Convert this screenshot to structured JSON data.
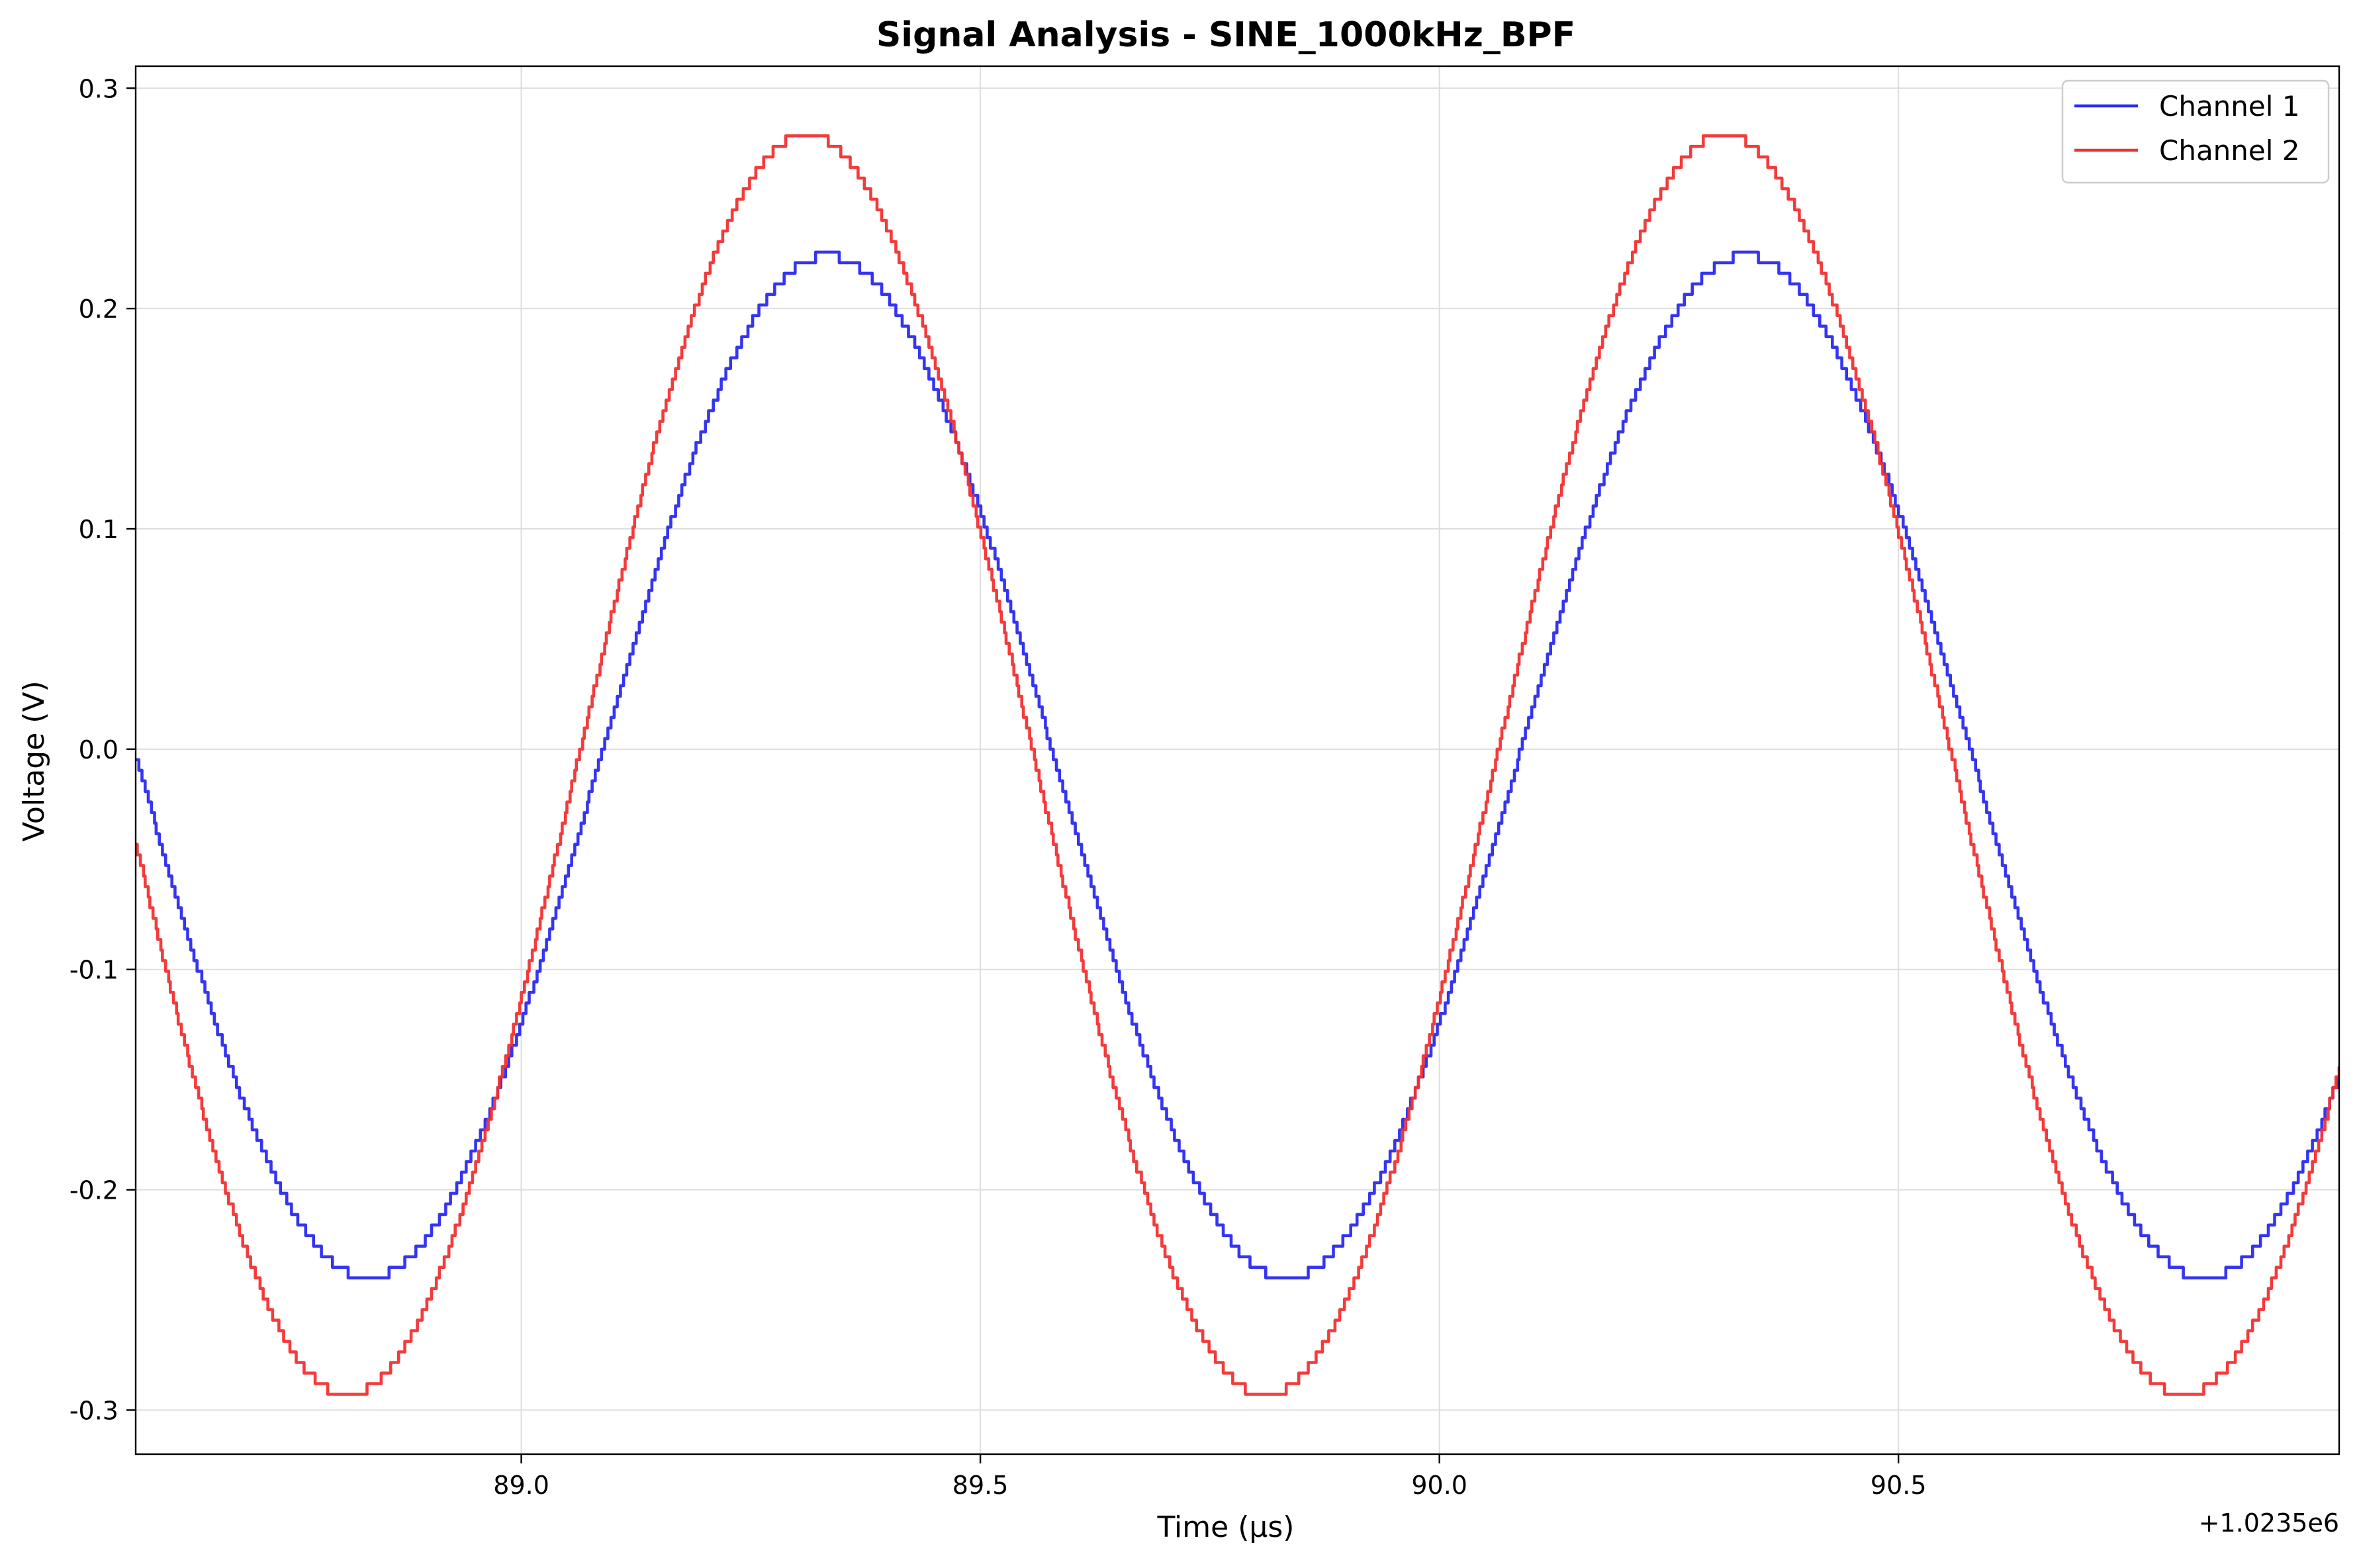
{
  "chart_data": {
    "type": "line",
    "title": "Signal Analysis - SINE_1000kHz_BPF",
    "xlabel": "Time (µs)",
    "ylabel": "Voltage (V)",
    "x_offset_label": "+1.0235e6",
    "xlim": [
      88.58,
      90.98
    ],
    "ylim": [
      -0.32,
      0.31
    ],
    "x_ticks": [
      89.0,
      89.5,
      90.0,
      90.5
    ],
    "x_tick_labels": [
      "89.0",
      "89.5",
      "90.0",
      "90.5"
    ],
    "y_ticks": [
      0.3,
      0.2,
      0.1,
      0.0,
      -0.1,
      -0.2,
      -0.3
    ],
    "y_tick_labels": [
      "0.3",
      "0.2",
      "0.1",
      "0.0",
      "-0.1",
      "-0.2",
      "-0.3"
    ],
    "grid": true,
    "legend_position": "top-right",
    "frequency_mhz": 1.0,
    "series": [
      {
        "name": "Channel 1",
        "color": "#2a2af0",
        "amplitude": 0.232,
        "dc_offset": -0.008,
        "peak_time": 89.333,
        "quantization_step": 0.0048
      },
      {
        "name": "Channel 2",
        "color": "#f23030",
        "amplitude": 0.286,
        "dc_offset": -0.007,
        "peak_time": 89.31,
        "quantization_step": 0.0048
      }
    ]
  }
}
